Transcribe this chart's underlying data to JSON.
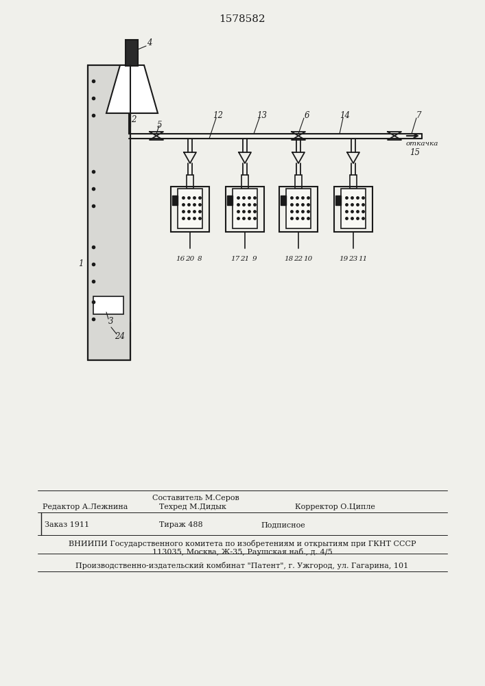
{
  "patent_number": "1578582",
  "background_color": "#f0f0eb",
  "line_color": "#1a1a1a",
  "title_fontsize": 11,
  "label_fontsize": 8.5,
  "footer_fontsize": 8,
  "labels": {
    "patent": "1578582",
    "label_otk": "откачка"
  },
  "footer": {
    "line1_left": "Составитель М.Серов",
    "line2_left": "Редактор А.Лежнина",
    "line2_mid": "Техред М.Дидык",
    "line2_right": "Корректор О.Ципле",
    "line3_left": "Заказ 1911",
    "line3_mid": "Тираж 488",
    "line3_right": "Подписное",
    "line4": "ВНИИПИ Государственного комитета по изобретениям и открытиям при ГКНТ СССР",
    "line5": "113035, Москва, Ж-35, Раушская наб., д. 4/5",
    "line6": "Производственно-издательский комбинат \"Патент\", г. Ужгород, ул. Гагарина, 101"
  }
}
